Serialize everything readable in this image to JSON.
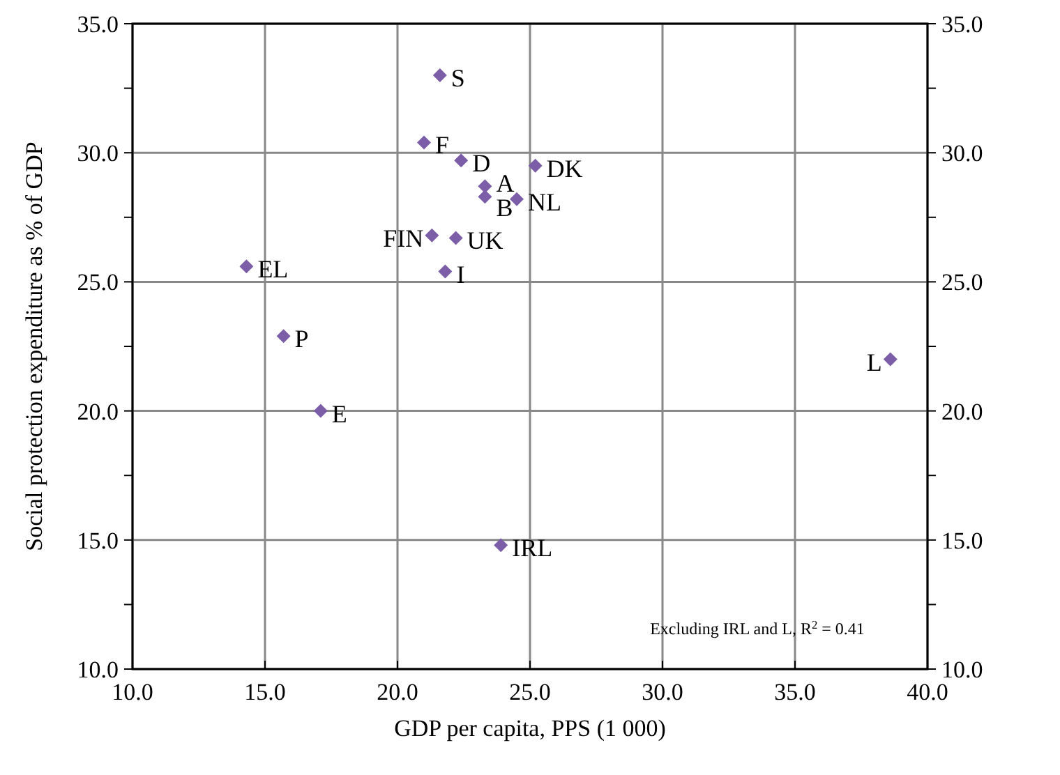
{
  "chart_data": {
    "type": "scatter",
    "xlabel": "GDP per capita, PPS (1 000)",
    "ylabel": "Social protection expenditure as % of GDP",
    "color": "#7b5ea7",
    "marker": "diamond",
    "grid": true,
    "xlim": [
      10,
      40
    ],
    "ylim": [
      10,
      35
    ],
    "y2lim": [
      10,
      35
    ],
    "xticks": [
      {
        "value": 10,
        "label": "10.0"
      },
      {
        "value": 15,
        "label": "15.0"
      },
      {
        "value": 20,
        "label": "20.0"
      },
      {
        "value": 25,
        "label": "25.0"
      },
      {
        "value": 30,
        "label": "30.0"
      },
      {
        "value": 35,
        "label": "35.0"
      },
      {
        "value": 40,
        "label": "40.0"
      }
    ],
    "yticks": [
      {
        "value": 10,
        "label": "10.0"
      },
      {
        "value": 12.5,
        "label": null
      },
      {
        "value": 15,
        "label": "15.0"
      },
      {
        "value": 17.5,
        "label": null
      },
      {
        "value": 20,
        "label": "20.0"
      },
      {
        "value": 22.5,
        "label": null
      },
      {
        "value": 25,
        "label": "25.0"
      },
      {
        "value": 27.5,
        "label": null
      },
      {
        "value": 30,
        "label": "30.0"
      },
      {
        "value": 32.5,
        "label": null
      },
      {
        "value": 35,
        "label": "35.0"
      }
    ],
    "y2ticks": [
      {
        "value": 10,
        "label": "10.0"
      },
      {
        "value": 12.5,
        "label": null
      },
      {
        "value": 15,
        "label": "15.0"
      },
      {
        "value": 17.5,
        "label": null
      },
      {
        "value": 20,
        "label": "20.0"
      },
      {
        "value": 22.5,
        "label": null
      },
      {
        "value": 25,
        "label": "25.0"
      },
      {
        "value": 27.5,
        "label": null
      },
      {
        "value": 30,
        "label": "30.0"
      },
      {
        "value": 32.5,
        "label": null
      },
      {
        "value": 35,
        "label": "35.0"
      }
    ],
    "x": [
      21.6,
      21.0,
      22.4,
      25.2,
      23.3,
      23.3,
      24.5,
      21.3,
      22.2,
      21.8,
      14.3,
      15.7,
      17.1,
      23.9,
      38.6
    ],
    "values": [
      33.0,
      30.4,
      29.7,
      29.5,
      28.7,
      28.3,
      28.2,
      26.8,
      26.7,
      25.4,
      25.6,
      22.9,
      20.0,
      14.8,
      22.0
    ],
    "annotations": [
      {
        "text": "S",
        "x": 21.6,
        "y": 33.0
      },
      {
        "text": "F",
        "x": 21.0,
        "y": 30.4
      },
      {
        "text": "D",
        "x": 22.4,
        "y": 29.7
      },
      {
        "text": "DK",
        "x": 25.2,
        "y": 29.5
      },
      {
        "text": "A",
        "x": 23.3,
        "y": 28.7
      },
      {
        "text": "B",
        "x": 23.3,
        "y": 28.3
      },
      {
        "text": "NL",
        "x": 24.5,
        "y": 28.2
      },
      {
        "text": "FIN",
        "x": 21.3,
        "y": 26.8
      },
      {
        "text": "UK",
        "x": 22.2,
        "y": 26.7
      },
      {
        "text": "I",
        "x": 21.8,
        "y": 25.4
      },
      {
        "text": "EL",
        "x": 14.3,
        "y": 25.6
      },
      {
        "text": "P",
        "x": 15.7,
        "y": 22.9
      },
      {
        "text": "E",
        "x": 17.1,
        "y": 20.0
      },
      {
        "text": "IRL",
        "x": 23.9,
        "y": 14.8
      },
      {
        "text": "L",
        "x": 38.6,
        "y": 22.0
      },
      "Excluding IRL  and L, R$^{2}$ = 0.41"
    ]
  }
}
